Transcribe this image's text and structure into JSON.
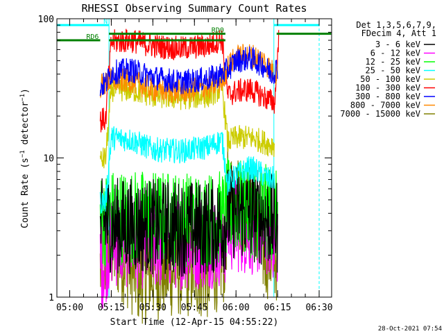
{
  "chart_data": {
    "type": "line",
    "title": "RHESSI Observing Summary Count Rates",
    "xlabel": "Start Time (12-Apr-15 04:55:22)",
    "ylabel": "Count Rate (s^-1 detector^-1)",
    "ylabel_parts": {
      "pre": "Count Rate (s",
      "sup": "−1",
      "post": " detector",
      "sup2": "−1",
      "end": ")"
    },
    "yscale": "log",
    "ylim": [
      1,
      100
    ],
    "y_ticks": [
      {
        "value": 1,
        "label": "1"
      },
      {
        "value": 10,
        "label": "10"
      },
      {
        "value": 100,
        "label": "100"
      }
    ],
    "xlim": [
      "04:55:22",
      "06:34:30"
    ],
    "x_ticks": [
      "05:00",
      "05:15",
      "05:30",
      "05:45",
      "06:00",
      "06:15",
      "06:30"
    ],
    "legend_header": [
      "Det 1,3,5,6,7,9,",
      "FDecim 4, Att 1"
    ],
    "legend_position": "right",
    "series": [
      {
        "name": "3 - 6 keV",
        "color": "#000000",
        "points": [
          [
            "05:11:00",
            3
          ],
          [
            "05:12:30",
            3.5
          ],
          [
            "05:15:00",
            3.3
          ],
          [
            "05:30:00",
            3.2
          ],
          [
            "05:45:00",
            3.1
          ],
          [
            "05:56:00",
            3.3
          ],
          [
            "05:57:00",
            4
          ],
          [
            "06:00:00",
            4.2
          ],
          [
            "06:08:00",
            3.8
          ],
          [
            "06:13:00",
            3.5
          ],
          [
            "06:15:00",
            3.2
          ]
        ]
      },
      {
        "name": "6 - 12 keV",
        "color": "#ff00ff",
        "points": [
          [
            "05:11:00",
            1.7
          ],
          [
            "05:13:00",
            2
          ],
          [
            "05:15:00",
            2.6
          ],
          [
            "05:30:00",
            2.5
          ],
          [
            "05:45:00",
            2.5
          ],
          [
            "05:56:00",
            2.6
          ],
          [
            "05:57:00",
            3.3
          ],
          [
            "06:00:00",
            3.3
          ],
          [
            "06:13:00",
            3
          ],
          [
            "06:15:00",
            2.6
          ]
        ]
      },
      {
        "name": "12 - 25 keV",
        "color": "#00ff00",
        "points": [
          [
            "05:11:00",
            3.5
          ],
          [
            "05:15:00",
            3.8
          ],
          [
            "05:30:00",
            3.7
          ],
          [
            "05:45:00",
            3.6
          ],
          [
            "05:56:00",
            3.7
          ],
          [
            "05:57:00",
            4.5
          ],
          [
            "06:00:00",
            4.4
          ],
          [
            "06:13:00",
            4
          ],
          [
            "06:15:00",
            3.6
          ]
        ]
      },
      {
        "name": "25 - 50 keV",
        "color": "#00ffff",
        "points": [
          [
            "05:11:00",
            4.8
          ],
          [
            "05:13:00",
            4.9
          ],
          [
            "05:15:00",
            14
          ],
          [
            "05:22:00",
            13.5
          ],
          [
            "05:30:00",
            11.5
          ],
          [
            "05:40:00",
            11.2
          ],
          [
            "05:50:00",
            12
          ],
          [
            "05:55:00",
            13.5
          ],
          [
            "05:57:00",
            6.5
          ],
          [
            "06:00:00",
            7.5
          ],
          [
            "06:05:00",
            8.5
          ],
          [
            "06:08:00",
            8
          ],
          [
            "06:12:00",
            7
          ],
          [
            "06:14:00",
            7.2
          ]
        ]
      },
      {
        "name": "50 - 100 keV",
        "color": "#cccc00",
        "points": [
          [
            "05:11:00",
            9.5
          ],
          [
            "05:13:00",
            10
          ],
          [
            "05:15:00",
            31
          ],
          [
            "05:22:00",
            31
          ],
          [
            "05:30:00",
            28
          ],
          [
            "05:40:00",
            27
          ],
          [
            "05:50:00",
            28
          ],
          [
            "05:55:00",
            32
          ],
          [
            "05:57:00",
            13
          ],
          [
            "06:00:00",
            14
          ],
          [
            "06:05:00",
            14
          ],
          [
            "06:08:00",
            13.5
          ],
          [
            "06:12:00",
            12.5
          ],
          [
            "06:14:00",
            12.5
          ]
        ]
      },
      {
        "name": "100 - 300 keV",
        "color": "#ff0000",
        "points": [
          [
            "05:11:00",
            18.5
          ],
          [
            "05:13:00",
            19
          ],
          [
            "05:15:00",
            68
          ],
          [
            "05:22:00",
            70
          ],
          [
            "05:30:00",
            64
          ],
          [
            "05:40:00",
            61
          ],
          [
            "05:50:00",
            64
          ],
          [
            "05:55:00",
            72
          ],
          [
            "05:57:00",
            28
          ],
          [
            "06:00:00",
            30
          ],
          [
            "06:05:00",
            31
          ],
          [
            "06:08:00",
            29
          ],
          [
            "06:12:00",
            26
          ],
          [
            "06:14:00",
            25
          ],
          [
            "06:15:30",
            75
          ]
        ]
      },
      {
        "name": "300 - 800 keV",
        "color": "#0000ff",
        "points": [
          [
            "05:11:00",
            33
          ],
          [
            "05:13:00",
            34
          ],
          [
            "05:15:00",
            41
          ],
          [
            "05:22:00",
            43
          ],
          [
            "05:30:00",
            38
          ],
          [
            "05:40:00",
            35
          ],
          [
            "05:50:00",
            37
          ],
          [
            "05:55:00",
            40
          ],
          [
            "05:57:00",
            43
          ],
          [
            "06:00:00",
            50
          ],
          [
            "06:05:00",
            52
          ],
          [
            "06:10:00",
            46
          ],
          [
            "06:13:00",
            40
          ],
          [
            "06:15:00",
            45
          ]
        ]
      },
      {
        "name": "800 - 7000 keV",
        "color": "#ff8800",
        "points": [
          [
            "05:11:00",
            33
          ],
          [
            "05:13:00",
            34
          ],
          [
            "05:15:00",
            36
          ],
          [
            "05:22:00",
            36
          ],
          [
            "05:30:00",
            31
          ],
          [
            "05:40:00",
            30
          ],
          [
            "05:50:00",
            32
          ],
          [
            "05:55:00",
            36
          ],
          [
            "05:57:00",
            45
          ],
          [
            "06:00:00",
            53
          ],
          [
            "06:05:00",
            55
          ],
          [
            "06:10:00",
            50
          ],
          [
            "06:13:00",
            42
          ],
          [
            "06:15:00",
            40
          ]
        ]
      },
      {
        "name": "7000 - 15000 keV",
        "color": "#808000",
        "points": [
          [
            "05:11:00",
            1.6
          ],
          [
            "05:15:00",
            2.3
          ],
          [
            "05:20:00",
            1.9
          ],
          [
            "05:25:00",
            1.4
          ],
          [
            "05:30:00",
            1.5
          ],
          [
            "05:40:00",
            1.6
          ],
          [
            "05:50:00",
            1.5
          ],
          [
            "05:56:00",
            2
          ],
          [
            "05:57:00",
            5.5
          ],
          [
            "06:00:00",
            5
          ],
          [
            "06:06:00",
            4.2
          ],
          [
            "06:10:00",
            2.2
          ],
          [
            "06:15:00",
            2
          ]
        ]
      }
    ],
    "annotations": [
      {
        "label": "N",
        "color": "#00ffff",
        "spans": [
          [
            "04:55:22",
            "05:14:10"
          ],
          [
            "06:13:40",
            "06:30:00"
          ]
        ],
        "level": 90
      },
      {
        "label": "RD0",
        "color": "#008000",
        "spans": [
          [
            "05:14:10",
            "05:56:10"
          ],
          [
            "06:14:40",
            "06:34:20"
          ]
        ],
        "level": 78
      },
      {
        "label": "RD6",
        "color": "#008000",
        "spans": [
          [
            "04:55:22",
            "05:11:00"
          ],
          [
            "05:14:10",
            "05:56:10"
          ]
        ],
        "level": 70
      }
    ],
    "vertical_markers": [
      {
        "time": "05:14:10",
        "color": "#00ffff",
        "style": "solid"
      },
      {
        "time": "06:13:40",
        "color": "#00ffff",
        "style": "solid"
      },
      {
        "time": "04:55:22",
        "color": "#00ffff",
        "style": "solid"
      },
      {
        "time": "06:30:00",
        "color": "#00ffff",
        "style": "dashed"
      }
    ],
    "grid": false
  },
  "footer": {
    "timestamp": "28-Oct-2021 07:54"
  }
}
